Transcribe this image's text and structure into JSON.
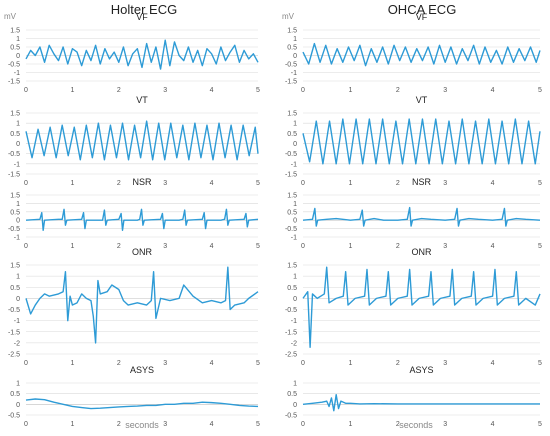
{
  "columns": [
    {
      "title": "Holter ECG",
      "xlabel": "seconds",
      "unit": "mV"
    },
    {
      "title": "OHCA ECG",
      "xlabel": "seconds",
      "unit": "mV"
    }
  ],
  "colors": {
    "trace": "#2e9bd6",
    "grid": "#d9d9d9",
    "axis": "#bfbfbf",
    "tick_text": "#555555"
  },
  "chart_data": [
    {
      "type": "line",
      "column": "Holter ECG",
      "title": "VF",
      "xlim": [
        0,
        5
      ],
      "ylim": [
        -1.5,
        1.5
      ],
      "ytick_labels": [
        "1.5",
        "1",
        "0.5",
        "0",
        "-0.5",
        "-1",
        "-1.5"
      ],
      "xtick_labels": [
        "0",
        "1",
        "2",
        "3",
        "4",
        "5"
      ],
      "series": [
        {
          "x": [
            0,
            0.1,
            0.2,
            0.3,
            0.4,
            0.5,
            0.6,
            0.7,
            0.8,
            0.9,
            1.0,
            1.1,
            1.2,
            1.3,
            1.4,
            1.5,
            1.6,
            1.7,
            1.8,
            1.9,
            2.0,
            2.1,
            2.2,
            2.3,
            2.4,
            2.5,
            2.6,
            2.7,
            2.8,
            2.9,
            3.0,
            3.1,
            3.2,
            3.3,
            3.4,
            3.5,
            3.6,
            3.7,
            3.8,
            3.9,
            4.0,
            4.1,
            4.2,
            4.3,
            4.4,
            4.5,
            4.6,
            4.7,
            4.8,
            4.9,
            5.0
          ],
          "y": [
            -0.2,
            0.3,
            0.0,
            0.5,
            -0.4,
            0.6,
            0.1,
            -0.3,
            0.5,
            -0.5,
            0.4,
            0.2,
            -0.6,
            0.3,
            -0.3,
            0.6,
            -0.5,
            0.4,
            -0.2,
            0.2,
            -0.4,
            0.5,
            -0.6,
            0.1,
            0.4,
            -0.7,
            0.7,
            -0.4,
            0.5,
            -0.8,
            0.9,
            -0.6,
            0.8,
            0.0,
            -0.3,
            0.5,
            -0.4,
            0.3,
            -0.6,
            0.4,
            0.1,
            -0.5,
            0.5,
            -0.3,
            0.2,
            0.6,
            -0.4,
            0.3,
            -0.2,
            0.1,
            -0.4
          ]
        }
      ]
    },
    {
      "type": "line",
      "column": "Holter ECG",
      "title": "VT",
      "xlim": [
        0,
        5
      ],
      "ylim": [
        -1.5,
        1.5
      ],
      "ytick_labels": [
        "1.5",
        "1",
        "0.5",
        "0",
        "-0.5",
        "-1",
        "-1.5"
      ],
      "xtick_labels": [
        "0",
        "1",
        "2",
        "3",
        "4",
        "5"
      ],
      "series": [
        {
          "x": [
            0,
            0.13,
            0.26,
            0.39,
            0.52,
            0.65,
            0.78,
            0.91,
            1.04,
            1.17,
            1.3,
            1.43,
            1.56,
            1.69,
            1.82,
            1.95,
            2.08,
            2.21,
            2.34,
            2.47,
            2.6,
            2.73,
            2.86,
            2.99,
            3.12,
            3.25,
            3.38,
            3.51,
            3.64,
            3.77,
            3.9,
            4.03,
            4.16,
            4.29,
            4.42,
            4.55,
            4.68,
            4.81,
            4.94,
            5.0
          ],
          "y": [
            0.6,
            -0.7,
            0.7,
            -0.6,
            0.8,
            -0.7,
            0.9,
            -0.6,
            0.8,
            -0.8,
            0.9,
            -0.7,
            1.0,
            -0.8,
            0.9,
            -0.7,
            1.0,
            -0.8,
            0.9,
            -0.7,
            1.1,
            -0.8,
            1.0,
            -0.8,
            1.0,
            -0.7,
            0.9,
            -0.8,
            1.0,
            -0.7,
            0.9,
            -0.8,
            1.0,
            -0.7,
            0.9,
            -0.8,
            0.9,
            -0.6,
            0.8,
            -0.5
          ]
        }
      ]
    },
    {
      "type": "line",
      "column": "Holter ECG",
      "title": "NSR",
      "xlim": [
        0,
        5
      ],
      "ylim": [
        -1.0,
        1.5
      ],
      "ytick_labels": [
        "1.5",
        "1",
        "0.5",
        "0",
        "-0.5",
        "-1"
      ],
      "xtick_labels": [
        "0",
        "1",
        "2",
        "3",
        "4",
        "5"
      ],
      "series": [
        {
          "x": [
            0,
            0.3,
            0.34,
            0.37,
            0.4,
            0.7,
            0.78,
            0.82,
            0.85,
            0.88,
            1.2,
            1.24,
            1.27,
            1.3,
            1.6,
            1.65,
            1.69,
            1.72,
            1.75,
            2.0,
            2.05,
            2.08,
            2.11,
            2.4,
            2.45,
            2.49,
            2.52,
            2.55,
            2.9,
            2.94,
            2.97,
            3.0,
            3.3,
            3.38,
            3.42,
            3.45,
            3.48,
            3.8,
            3.84,
            3.87,
            3.9,
            4.2,
            4.28,
            4.32,
            4.35,
            4.38,
            4.7,
            4.74,
            4.77,
            4.8,
            5.0
          ],
          "y": [
            0.0,
            0.05,
            0.45,
            -0.6,
            0.0,
            0.05,
            0.05,
            0.65,
            -0.3,
            0.0,
            0.05,
            0.45,
            -0.5,
            0.0,
            0.0,
            0.0,
            0.6,
            -0.3,
            0.0,
            0.05,
            0.4,
            -0.6,
            0.0,
            0.0,
            0.05,
            0.65,
            -0.3,
            0.0,
            0.05,
            0.4,
            -0.5,
            0.0,
            0.0,
            0.05,
            0.6,
            -0.3,
            0.0,
            0.05,
            0.45,
            -0.5,
            0.0,
            0.0,
            0.05,
            0.65,
            -0.3,
            0.0,
            0.05,
            0.4,
            -0.4,
            0.0,
            0.05
          ]
        }
      ]
    },
    {
      "type": "line",
      "column": "Holter ECG",
      "title": "ONR",
      "xlim": [
        0,
        5
      ],
      "ylim": [
        -2.5,
        1.5
      ],
      "ytick_labels": [
        "1.5",
        "1",
        "0.5",
        "0",
        "-0.5",
        "-1",
        "-1.5",
        "-2",
        "-2.5"
      ],
      "xtick_labels": [
        "0",
        "1",
        "2",
        "3",
        "4",
        "5"
      ],
      "series": [
        {
          "x": [
            0,
            0.1,
            0.2,
            0.3,
            0.4,
            0.5,
            0.7,
            0.8,
            0.85,
            0.9,
            0.95,
            1.0,
            1.1,
            1.2,
            1.3,
            1.4,
            1.45,
            1.5,
            1.55,
            1.6,
            1.75,
            1.85,
            2.0,
            2.1,
            2.2,
            2.4,
            2.6,
            2.7,
            2.75,
            2.8,
            2.9,
            3.1,
            3.3,
            3.4,
            3.6,
            3.8,
            4.0,
            4.2,
            4.3,
            4.35,
            4.4,
            4.5,
            4.7,
            4.8,
            5.0
          ],
          "y": [
            0.0,
            -0.7,
            -0.3,
            0.0,
            0.2,
            0.1,
            0.2,
            0.3,
            1.2,
            -1.0,
            0.1,
            -0.3,
            -0.2,
            0.2,
            0.0,
            -0.1,
            -0.8,
            -2.0,
            0.8,
            0.2,
            0.3,
            0.6,
            0.4,
            -0.1,
            -0.3,
            -0.2,
            -0.3,
            -0.1,
            1.2,
            -0.9,
            0.0,
            -0.1,
            0.0,
            0.6,
            0.1,
            -0.2,
            -0.1,
            -0.2,
            -0.1,
            1.4,
            -0.5,
            -0.3,
            -0.2,
            0.0,
            0.3
          ]
        }
      ]
    },
    {
      "type": "line",
      "column": "Holter ECG",
      "title": "ASYS",
      "xlim": [
        0,
        5
      ],
      "ylim": [
        -0.5,
        1.0
      ],
      "ytick_labels": [
        "1",
        "0.5",
        "0",
        "-0.5"
      ],
      "xtick_labels": [
        "0",
        "1",
        "2",
        "3",
        "4",
        "5"
      ],
      "series": [
        {
          "x": [
            0,
            0.2,
            0.4,
            0.6,
            0.8,
            1.0,
            1.2,
            1.4,
            1.6,
            1.8,
            2.0,
            2.2,
            2.4,
            2.6,
            2.8,
            3.0,
            3.2,
            3.4,
            3.6,
            3.8,
            4.0,
            4.2,
            4.4,
            4.6,
            4.8,
            5.0
          ],
          "y": [
            0.2,
            0.25,
            0.22,
            0.1,
            0.0,
            -0.1,
            -0.15,
            -0.2,
            -0.18,
            -0.15,
            -0.12,
            -0.1,
            -0.08,
            -0.05,
            -0.05,
            0.0,
            0.0,
            0.05,
            0.05,
            0.1,
            0.08,
            0.05,
            0.0,
            -0.05,
            -0.08,
            -0.1
          ]
        }
      ]
    },
    {
      "type": "line",
      "column": "OHCA ECG",
      "title": "VF",
      "xlim": [
        0,
        5
      ],
      "ylim": [
        -1.5,
        1.5
      ],
      "ytick_labels": [
        "1.5",
        "1",
        "0.5",
        "0",
        "-0.5",
        "-1",
        "-1.5"
      ],
      "xtick_labels": [
        "0",
        "1",
        "2",
        "3",
        "4",
        "5"
      ],
      "series": [
        {
          "x": [
            0,
            0.12,
            0.24,
            0.36,
            0.48,
            0.6,
            0.72,
            0.84,
            0.96,
            1.08,
            1.2,
            1.32,
            1.44,
            1.56,
            1.68,
            1.8,
            1.92,
            2.04,
            2.16,
            2.28,
            2.4,
            2.52,
            2.64,
            2.76,
            2.88,
            3.0,
            3.12,
            3.24,
            3.36,
            3.48,
            3.6,
            3.72,
            3.84,
            3.96,
            4.08,
            4.2,
            4.32,
            4.44,
            4.56,
            4.68,
            4.8,
            4.92,
            5.0
          ],
          "y": [
            0.2,
            -0.5,
            0.7,
            -0.4,
            0.6,
            -0.5,
            0.4,
            -0.4,
            0.5,
            -0.3,
            0.6,
            -0.6,
            0.4,
            -0.4,
            0.5,
            -0.5,
            0.6,
            -0.3,
            0.5,
            -0.4,
            0.4,
            -0.3,
            0.5,
            -0.5,
            0.6,
            -0.4,
            0.5,
            -0.5,
            0.4,
            -0.3,
            0.6,
            -0.5,
            0.5,
            -0.4,
            0.3,
            -0.5,
            0.5,
            -0.4,
            0.4,
            -0.3,
            0.5,
            -0.4,
            0.3
          ]
        }
      ]
    },
    {
      "type": "line",
      "column": "OHCA ECG",
      "title": "VT",
      "xlim": [
        0,
        5
      ],
      "ylim": [
        -1.5,
        1.5
      ],
      "ytick_labels": [
        "1.5",
        "1",
        "0.5",
        "0",
        "-0.5",
        "-1",
        "-1.5"
      ],
      "xtick_labels": [
        "0",
        "1",
        "2",
        "3",
        "4",
        "5"
      ],
      "series": [
        {
          "x": [
            0,
            0.14,
            0.28,
            0.42,
            0.56,
            0.7,
            0.84,
            0.98,
            1.12,
            1.26,
            1.4,
            1.54,
            1.68,
            1.82,
            1.96,
            2.1,
            2.24,
            2.38,
            2.52,
            2.66,
            2.8,
            2.94,
            3.08,
            3.22,
            3.36,
            3.5,
            3.64,
            3.78,
            3.92,
            4.06,
            4.2,
            4.34,
            4.48,
            4.62,
            4.76,
            4.9,
            5.0
          ],
          "y": [
            0.5,
            -0.9,
            1.1,
            -1.0,
            1.1,
            -1.0,
            1.2,
            -1.0,
            1.2,
            -1.0,
            1.2,
            -1.0,
            1.2,
            -1.0,
            1.1,
            -1.0,
            1.2,
            -1.0,
            1.2,
            -1.0,
            1.2,
            -1.0,
            1.1,
            -1.0,
            1.2,
            -1.0,
            1.1,
            -1.0,
            1.2,
            -1.0,
            1.1,
            -1.0,
            1.2,
            -1.0,
            1.1,
            -1.0,
            0.6
          ]
        }
      ]
    },
    {
      "type": "line",
      "column": "OHCA ECG",
      "title": "NSR",
      "xlim": [
        0,
        5
      ],
      "ylim": [
        -1.0,
        1.5
      ],
      "ytick_labels": [
        "1.5",
        "1",
        "0.5",
        "0",
        "-0.5",
        "-1"
      ],
      "xtick_labels": [
        "0",
        "1",
        "2",
        "3",
        "4",
        "5"
      ],
      "series": [
        {
          "x": [
            0,
            0.2,
            0.25,
            0.28,
            0.31,
            0.5,
            0.7,
            1.0,
            1.2,
            1.25,
            1.28,
            1.31,
            1.5,
            1.7,
            2.0,
            2.2,
            2.25,
            2.28,
            2.31,
            2.5,
            2.7,
            3.0,
            3.2,
            3.25,
            3.28,
            3.31,
            3.5,
            3.7,
            4.0,
            4.2,
            4.25,
            4.28,
            4.31,
            4.5,
            4.7,
            5.0
          ],
          "y": [
            0.0,
            0.05,
            0.7,
            -0.35,
            0.0,
            0.05,
            0.1,
            0.0,
            0.05,
            0.6,
            -0.35,
            0.0,
            0.1,
            0.0,
            0.0,
            0.05,
            0.75,
            -0.35,
            0.0,
            0.1,
            0.05,
            0.0,
            0.05,
            0.7,
            -0.35,
            0.0,
            0.1,
            0.05,
            0.0,
            0.05,
            0.7,
            -0.35,
            0.0,
            0.1,
            0.05,
            0.0
          ]
        }
      ]
    },
    {
      "type": "line",
      "column": "OHCA ECG",
      "title": "ONR",
      "xlim": [
        0,
        5
      ],
      "ylim": [
        -2.5,
        1.5
      ],
      "ytick_labels": [
        "1.5",
        "1",
        "0.5",
        "0",
        "-0.5",
        "-1",
        "-1.5",
        "-2",
        "-2.5"
      ],
      "xtick_labels": [
        "0",
        "1",
        "2",
        "3",
        "4",
        "5"
      ],
      "series": [
        {
          "x": [
            0,
            0.1,
            0.15,
            0.2,
            0.3,
            0.45,
            0.5,
            0.55,
            0.7,
            0.85,
            0.9,
            0.95,
            1.1,
            1.3,
            1.35,
            1.4,
            1.55,
            1.75,
            1.8,
            1.85,
            2.0,
            2.2,
            2.25,
            2.3,
            2.45,
            2.65,
            2.7,
            2.75,
            2.9,
            3.1,
            3.15,
            3.2,
            3.35,
            3.55,
            3.6,
            3.65,
            3.8,
            4.0,
            4.05,
            4.1,
            4.25,
            4.45,
            4.5,
            4.55,
            4.7,
            4.9,
            5.0
          ],
          "y": [
            0.0,
            0.3,
            -2.2,
            0.2,
            0.0,
            0.2,
            1.4,
            -0.2,
            0.0,
            0.1,
            1.2,
            -0.3,
            0.0,
            0.1,
            1.3,
            -0.3,
            0.0,
            0.1,
            1.2,
            -0.3,
            0.0,
            0.1,
            1.3,
            -0.3,
            0.0,
            0.1,
            1.2,
            -0.3,
            0.0,
            0.1,
            1.3,
            -0.3,
            0.0,
            0.1,
            1.2,
            -0.3,
            0.0,
            0.1,
            1.3,
            -0.3,
            0.0,
            0.1,
            1.2,
            -0.3,
            0.0,
            -0.3,
            0.2
          ]
        }
      ]
    },
    {
      "type": "line",
      "column": "OHCA ECG",
      "title": "ASYS",
      "xlim": [
        0,
        5
      ],
      "ylim": [
        -0.5,
        1.0
      ],
      "ytick_labels": [
        "1",
        "0.5",
        "0",
        "-0.5"
      ],
      "xtick_labels": [
        "0",
        "1",
        "2",
        "3",
        "4",
        "5"
      ],
      "series": [
        {
          "x": [
            0,
            0.2,
            0.4,
            0.5,
            0.55,
            0.6,
            0.65,
            0.7,
            0.75,
            0.8,
            0.9,
            1.0,
            1.2,
            1.5,
            2.0,
            2.5,
            3.0,
            3.5,
            4.0,
            4.5,
            5.0
          ],
          "y": [
            0.0,
            0.05,
            0.1,
            0.15,
            -0.1,
            0.3,
            -0.3,
            0.45,
            -0.2,
            0.15,
            0.05,
            0.05,
            0.02,
            0.03,
            0.02,
            0.02,
            0.02,
            0.02,
            0.02,
            0.02,
            0.02
          ]
        }
      ]
    }
  ]
}
